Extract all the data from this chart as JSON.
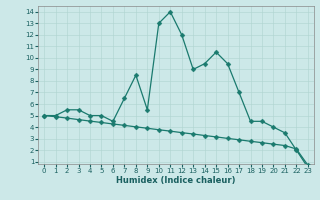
{
  "line1_x": [
    0,
    1,
    2,
    3,
    4,
    5,
    6,
    7,
    8,
    9,
    10,
    11,
    12,
    13,
    14,
    15,
    16,
    17,
    18,
    19,
    20,
    21,
    22,
    23
  ],
  "line1_y": [
    5,
    5,
    5.5,
    5.5,
    5,
    5,
    4.5,
    6.5,
    8.5,
    5.5,
    13,
    14,
    12,
    9,
    9.5,
    10.5,
    9.5,
    7,
    4.5,
    4.5,
    4,
    3.5,
    2,
    0.5
  ],
  "line2_x": [
    0,
    1,
    2,
    3,
    4,
    5,
    6,
    7,
    8,
    9,
    10,
    11,
    12,
    13,
    14,
    15,
    16,
    17,
    18,
    19,
    20,
    21,
    22,
    23
  ],
  "line2_y": [
    5.0,
    4.9,
    4.78,
    4.65,
    4.52,
    4.4,
    4.27,
    4.15,
    4.02,
    3.9,
    3.77,
    3.65,
    3.52,
    3.4,
    3.27,
    3.15,
    3.02,
    2.9,
    2.77,
    2.65,
    2.52,
    2.4,
    2.1,
    0.7
  ],
  "line_color": "#1a7a6e",
  "bg_color": "#cce8e8",
  "grid_color": "#afd4d0",
  "xlabel": "Humidex (Indice chaleur)",
  "yticks": [
    1,
    2,
    3,
    4,
    5,
    6,
    7,
    8,
    9,
    10,
    11,
    12,
    13,
    14
  ],
  "xticks": [
    0,
    1,
    2,
    3,
    4,
    5,
    6,
    7,
    8,
    9,
    10,
    11,
    12,
    13,
    14,
    15,
    16,
    17,
    18,
    19,
    20,
    21,
    22,
    23
  ],
  "xlim_min": -0.5,
  "xlim_max": 23.5,
  "ylim_min": 0.8,
  "ylim_max": 14.5,
  "markersize": 2.5,
  "linewidth": 0.9,
  "tick_labelsize": 5,
  "xlabel_fontsize": 6,
  "tick_color": "#1a6060"
}
